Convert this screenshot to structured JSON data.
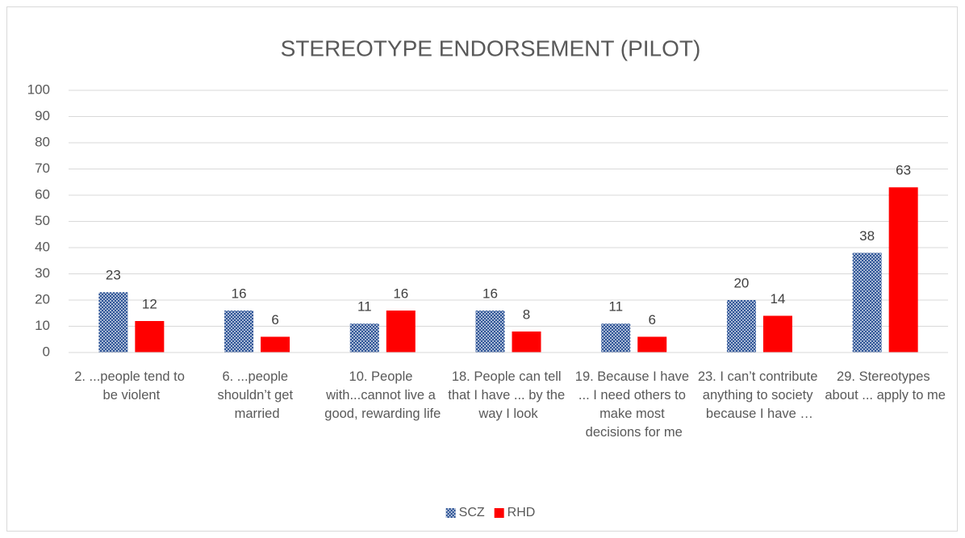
{
  "chart_data": {
    "type": "bar",
    "title": "STEREOTYPE ENDORSEMENT (PILOT)",
    "categories": [
      "2. ...people tend to be violent",
      "6. ...people shouldn’t get married",
      "10. People with...cannot live a good, rewarding life",
      "18. People can tell that I have ... by the way I look",
      "19. Because I have ... I need others to make most decisions for me",
      "23. I can’t contribute anything to society because I have …",
      "29. Stereotypes about ... apply to me"
    ],
    "series": [
      {
        "name": "SCZ",
        "color": "#2f5597",
        "pattern": "dots",
        "values": [
          23,
          16,
          11,
          16,
          11,
          20,
          38
        ]
      },
      {
        "name": "RHD",
        "color": "#ff0000",
        "values": [
          12,
          6,
          16,
          8,
          6,
          14,
          63
        ]
      }
    ],
    "ylim": [
      0,
      100
    ],
    "yticks": [
      0,
      10,
      20,
      30,
      40,
      50,
      60,
      70,
      80,
      90,
      100
    ],
    "grid": true,
    "legend": "bottom"
  }
}
